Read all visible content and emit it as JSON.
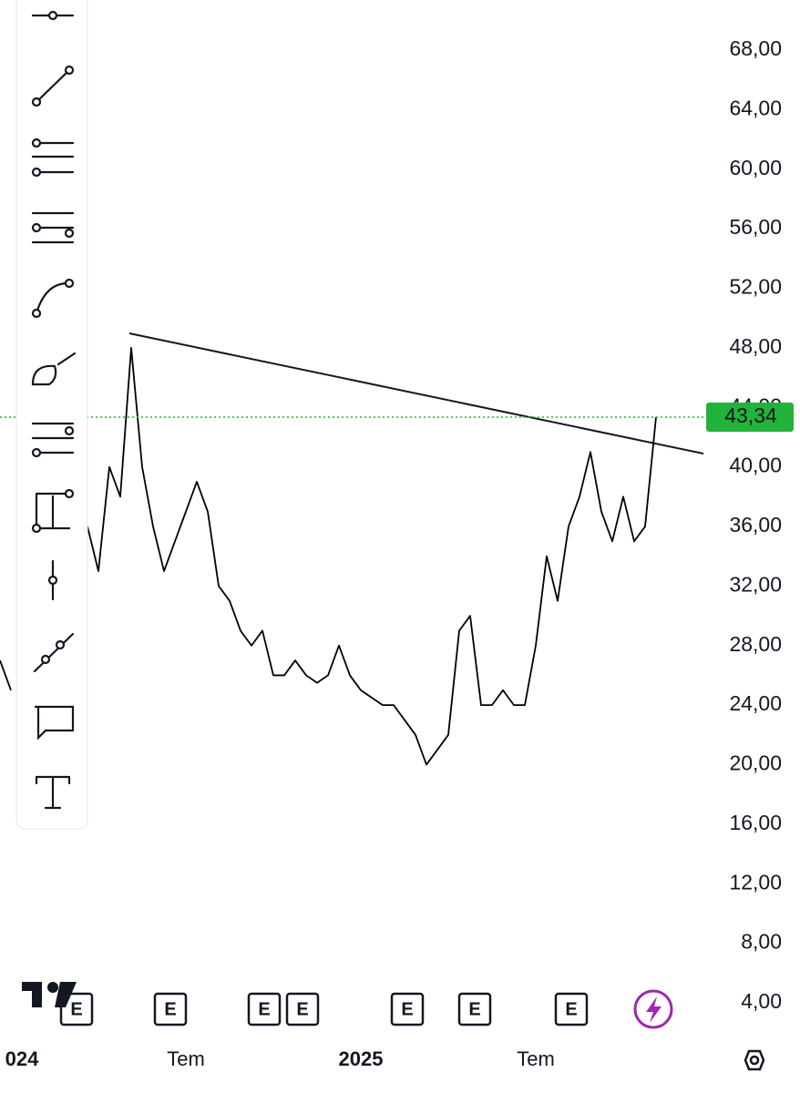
{
  "chart_data": {
    "type": "line",
    "categories": [
      null,
      null,
      "024",
      null,
      null,
      null,
      null,
      null,
      null,
      null,
      null,
      null,
      null,
      null,
      null,
      null,
      null,
      "Tem",
      null,
      null,
      null,
      null,
      null,
      null,
      null,
      null,
      null,
      null,
      null,
      null,
      null,
      null,
      null,
      "2025",
      null,
      null,
      null,
      null,
      null,
      null,
      null,
      null,
      null,
      null,
      null,
      null,
      null,
      null,
      null,
      "Tem",
      null,
      null,
      null,
      null,
      null,
      null,
      null,
      null,
      null,
      null,
      null
    ],
    "series": [
      {
        "color": "#000000",
        "values": [
          27,
          25,
          null,
          null,
          null,
          null,
          null,
          null,
          36,
          33,
          40,
          38,
          48,
          40,
          36,
          33,
          35,
          37,
          39,
          37,
          32,
          31,
          29,
          28,
          29,
          26,
          26,
          27,
          26,
          25.5,
          26,
          28,
          26,
          25,
          24.5,
          24,
          24,
          23,
          22,
          20,
          21,
          22,
          29,
          30,
          24,
          24,
          25,
          24,
          24,
          28,
          34,
          31,
          36,
          38,
          41,
          37,
          35,
          38,
          35,
          36,
          43.34
        ]
      }
    ],
    "ylim": [
      4,
      68
    ],
    "yticks": [
      {
        "value": 4,
        "label": "4,00"
      },
      {
        "value": 8,
        "label": "8,00"
      },
      {
        "value": 12,
        "label": "12,00"
      },
      {
        "value": 16,
        "label": "16,00"
      },
      {
        "value": 20,
        "label": "20,00"
      },
      {
        "value": 24,
        "label": "24,00"
      },
      {
        "value": 28,
        "label": "28,00"
      },
      {
        "value": 32,
        "label": "32,00"
      },
      {
        "value": 36,
        "label": "36,00"
      },
      {
        "value": 40,
        "label": "40,00"
      },
      {
        "value": 44,
        "label": "44,00"
      },
      {
        "value": 48,
        "label": "48,00"
      },
      {
        "value": 52,
        "label": "52,00"
      },
      {
        "value": 56,
        "label": "56,00"
      },
      {
        "value": 60,
        "label": "60,00"
      },
      {
        "value": 64,
        "label": "64,00"
      },
      {
        "value": 68,
        "label": "68,00"
      }
    ],
    "current_price": {
      "value": 43.34,
      "label": "43,34",
      "color": "#22b33a"
    },
    "event_markers": [
      "E",
      "E",
      "E",
      "E",
      "E",
      "E",
      "E"
    ]
  }
}
